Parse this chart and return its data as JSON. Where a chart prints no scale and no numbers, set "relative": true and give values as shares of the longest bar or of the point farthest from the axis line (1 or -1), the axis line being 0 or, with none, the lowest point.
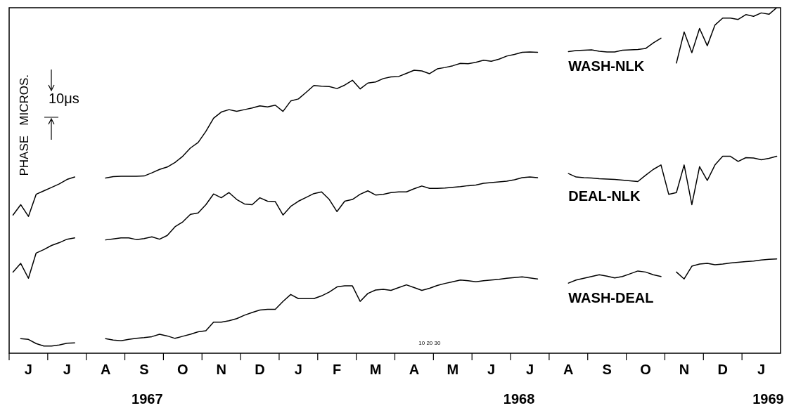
{
  "chart_data": {
    "type": "line",
    "relative": true,
    "ylabel": "PHASE   MICROS.",
    "annotations": [
      "10μs",
      "10 20 30",
      "1967",
      "1968",
      "1969"
    ],
    "categories": [
      null,
      null,
      "J",
      null,
      null,
      null,
      null,
      "J",
      null,
      null,
      null,
      null,
      "A",
      null,
      null,
      null,
      null,
      "S",
      null,
      null,
      null,
      null,
      "O",
      null,
      null,
      null,
      null,
      "N",
      null,
      null,
      null,
      null,
      "D",
      null,
      null,
      null,
      null,
      "J",
      null,
      null,
      null,
      null,
      "F",
      null,
      null,
      null,
      null,
      "M",
      null,
      null,
      null,
      null,
      "A",
      null,
      null,
      null,
      null,
      "M",
      null,
      null,
      null,
      null,
      "J",
      null,
      null,
      null,
      null,
      "J",
      null,
      null,
      null,
      null,
      "A",
      null,
      null,
      null,
      null,
      "S",
      null,
      null,
      null,
      null,
      "O",
      null,
      null,
      null,
      null,
      "N",
      null,
      null,
      null,
      null,
      "D",
      null,
      null,
      null,
      null,
      "J",
      null,
      null
    ],
    "series": [
      {
        "name": "WASH-NLK",
        "color": "#000000",
        "values": [
          0.4,
          0.43,
          0.396,
          0.46,
          0.47,
          0.48,
          0.49,
          0.503,
          0.51,
          null,
          null,
          null,
          0.507,
          0.511,
          0.512,
          0.512,
          0.512,
          0.513,
          0.522,
          0.532,
          0.539,
          0.552,
          0.57,
          0.594,
          0.61,
          0.642,
          0.68,
          0.698,
          0.705,
          0.7,
          0.705,
          0.71,
          0.716,
          0.713,
          0.718,
          0.7,
          0.73,
          0.736,
          0.755,
          0.775,
          0.773,
          0.772,
          0.766,
          0.776,
          0.79,
          0.765,
          0.782,
          0.785,
          0.795,
          0.8,
          0.801,
          0.81,
          0.819,
          0.817,
          0.809,
          0.823,
          0.827,
          0.832,
          0.839,
          0.838,
          0.842,
          0.848,
          0.845,
          0.851,
          0.86,
          0.865,
          0.871,
          0.872,
          0.871,
          null,
          null,
          null,
          0.873,
          0.876,
          0.877,
          0.878,
          0.874,
          0.872,
          0.872,
          0.877,
          0.878,
          0.879,
          0.882,
          0.898,
          0.912,
          null,
          0.84,
          0.93,
          0.87,
          0.94,
          0.89,
          0.95,
          0.97,
          0.97,
          0.966,
          0.98,
          0.975,
          0.985,
          0.981,
          1
        ]
      },
      {
        "name": "DEAL-NLK",
        "color": "#000000",
        "values": [
          0.235,
          0.26,
          0.217,
          0.29,
          0.3,
          0.312,
          0.32,
          0.33,
          0.334,
          null,
          null,
          null,
          0.328,
          0.331,
          0.334,
          0.334,
          0.329,
          0.332,
          0.337,
          0.33,
          0.341,
          0.366,
          0.38,
          0.402,
          0.406,
          0.43,
          0.461,
          0.45,
          0.465,
          0.445,
          0.432,
          0.43,
          0.45,
          0.44,
          0.439,
          0.4,
          0.425,
          0.44,
          0.451,
          0.462,
          0.467,
          0.445,
          0.41,
          0.44,
          0.445,
          0.46,
          0.47,
          0.458,
          0.46,
          0.465,
          0.467,
          0.467,
          0.476,
          0.484,
          0.477,
          0.477,
          0.478,
          0.48,
          0.482,
          0.485,
          0.487,
          0.492,
          0.494,
          0.496,
          0.498,
          0.502,
          0.508,
          0.51,
          0.508,
          null,
          null,
          null,
          0.52,
          0.51,
          0.508,
          0.507,
          0.505,
          0.504,
          0.503,
          0.501,
          0.499,
          0.497,
          0.515,
          0.532,
          0.545,
          0.46,
          0.465,
          0.545,
          0.43,
          0.54,
          0.5,
          0.545,
          0.57,
          0.57,
          0.555,
          0.566,
          0.565,
          0.56,
          0.564,
          0.57
        ]
      },
      {
        "name": "WASH-DEAL",
        "color": "#000000",
        "values": [
          null,
          0.042,
          0.04,
          0.028,
          0.021,
          0.021,
          0.024,
          0.029,
          0.03,
          null,
          null,
          null,
          0.042,
          0.038,
          0.036,
          0.04,
          0.043,
          0.045,
          0.048,
          0.055,
          0.05,
          0.043,
          0.049,
          0.055,
          0.062,
          0.065,
          0.09,
          0.09,
          0.094,
          0.1,
          0.11,
          0.118,
          0.125,
          0.127,
          0.127,
          0.15,
          0.17,
          0.158,
          0.158,
          0.158,
          0.166,
          0.177,
          0.192,
          0.195,
          0.195,
          0.15,
          0.173,
          0.183,
          0.185,
          0.182,
          0.19,
          0.198,
          0.19,
          0.182,
          0.188,
          0.196,
          0.202,
          0.207,
          0.212,
          0.21,
          0.207,
          0.21,
          0.212,
          0.214,
          0.217,
          0.219,
          0.221,
          0.218,
          0.215,
          null,
          null,
          null,
          0.203,
          0.212,
          0.217,
          0.222,
          0.227,
          0.223,
          0.218,
          0.222,
          0.23,
          0.238,
          0.235,
          0.227,
          0.222,
          null,
          0.235,
          0.215,
          0.252,
          0.258,
          0.26,
          0.256,
          0.258,
          0.261,
          0.263,
          0.265,
          0.267,
          0.27,
          0.272,
          0.273
        ]
      }
    ]
  }
}
